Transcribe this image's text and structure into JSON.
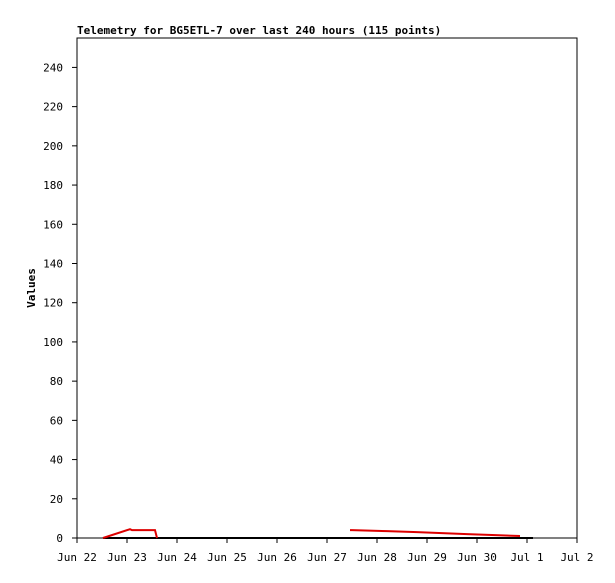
{
  "chart_data": {
    "type": "line",
    "title": "Telemetry for BG5ETL-7 over last 240 hours (115 points)",
    "y_label": "Values",
    "xlim": [
      0,
      10
    ],
    "xticks": [
      {
        "value": 0,
        "label": "Jun 22"
      },
      {
        "value": 1,
        "label": "Jun 23"
      },
      {
        "value": 2,
        "label": "Jun 24"
      },
      {
        "value": 3,
        "label": "Jun 25"
      },
      {
        "value": 4,
        "label": "Jun 26"
      },
      {
        "value": 5,
        "label": "Jun 27"
      },
      {
        "value": 6,
        "label": "Jun 28"
      },
      {
        "value": 7,
        "label": "Jun 29"
      },
      {
        "value": 8,
        "label": "Jun 30"
      },
      {
        "value": 9,
        "label": "Jul 1"
      },
      {
        "value": 10,
        "label": "Jul 2"
      }
    ],
    "ylim": [
      0,
      255
    ],
    "yticks": [
      0,
      20,
      40,
      60,
      80,
      100,
      120,
      140,
      160,
      180,
      200,
      220,
      240
    ],
    "series": [
      {
        "color": "#000000",
        "x": [
          0.52,
          9.12
        ],
        "values": [
          0,
          0
        ]
      },
      {
        "color": "#dd0000",
        "x": [
          0.52,
          1.06,
          1.1,
          1.56,
          1.6,
          3,
          5.46,
          5.5,
          6.2,
          6.8,
          7.3,
          7.8,
          8.3,
          8.86
        ],
        "values": [
          0,
          4.5,
          4,
          4,
          0,
          null,
          4,
          4,
          3.5,
          3,
          2.5,
          2,
          1.5,
          1
        ]
      }
    ]
  }
}
